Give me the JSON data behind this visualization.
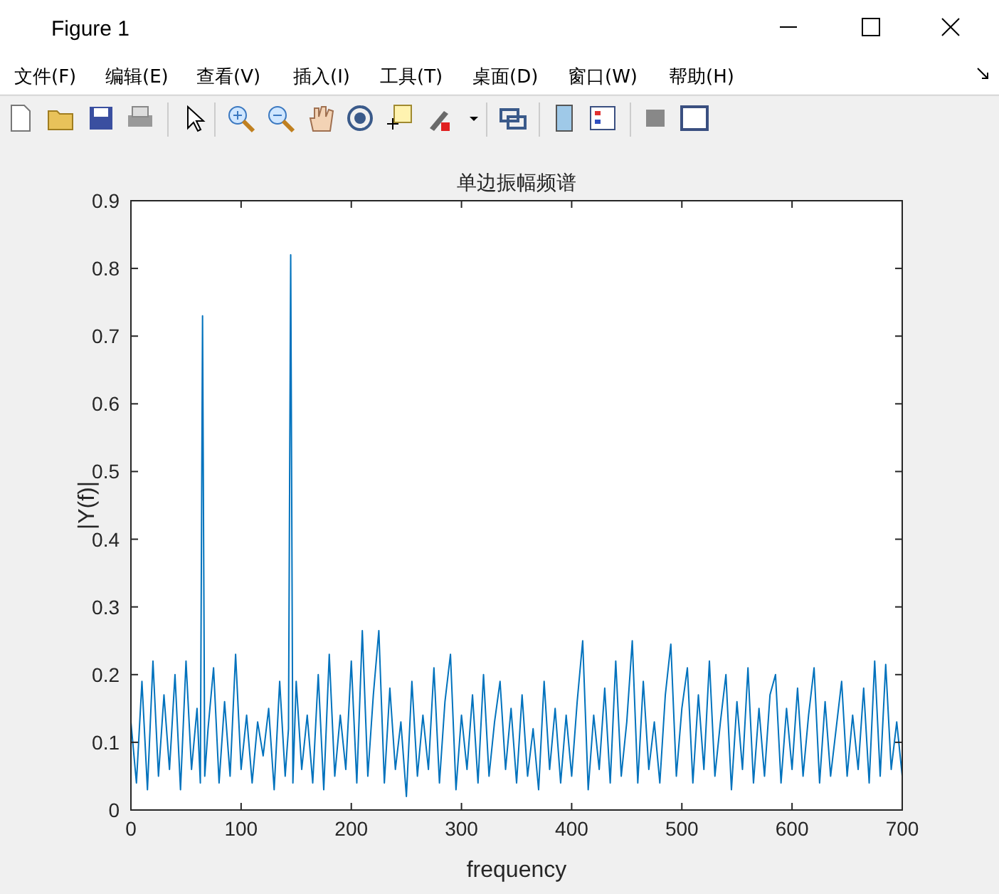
{
  "chart_data": {
    "type": "line",
    "title": "单边振幅频谱",
    "xlabel": "frequency",
    "ylabel": "|Y(f)|",
    "annotations": [
      "Figure 1",
      "文件(F)",
      "编辑(E)",
      "查看(V)",
      "插入(I)",
      "工具(T)",
      "桌面(D)",
      "窗口(W)",
      "帮助(H)"
    ],
    "x": [
      0,
      5,
      10,
      15,
      20,
      25,
      30,
      35,
      40,
      45,
      50,
      55,
      60,
      63,
      65,
      67,
      70,
      75,
      80,
      85,
      90,
      95,
      100,
      105,
      110,
      115,
      120,
      125,
      130,
      135,
      140,
      143,
      145,
      147,
      150,
      155,
      160,
      165,
      170,
      175,
      180,
      185,
      190,
      195,
      200,
      205,
      210,
      215,
      220,
      225,
      230,
      235,
      240,
      245,
      250,
      255,
      260,
      265,
      270,
      275,
      280,
      285,
      290,
      295,
      300,
      305,
      310,
      315,
      320,
      325,
      330,
      335,
      340,
      345,
      350,
      355,
      360,
      365,
      370,
      375,
      380,
      385,
      390,
      395,
      400,
      405,
      410,
      415,
      420,
      425,
      430,
      435,
      440,
      445,
      450,
      455,
      460,
      465,
      470,
      475,
      480,
      485,
      490,
      495,
      500,
      505,
      510,
      515,
      520,
      525,
      530,
      535,
      540,
      545,
      550,
      555,
      560,
      565,
      570,
      575,
      580,
      585,
      590,
      595,
      600,
      605,
      610,
      615,
      620,
      625,
      630,
      635,
      640,
      645,
      650,
      655,
      660,
      665,
      670,
      675,
      680,
      685,
      690,
      695,
      700
    ],
    "series": [
      {
        "color": "#0072bd",
        "values": [
          0.13,
          0.04,
          0.19,
          0.03,
          0.22,
          0.05,
          0.17,
          0.06,
          0.2,
          0.03,
          0.22,
          0.06,
          0.15,
          0.04,
          0.73,
          0.05,
          0.12,
          0.21,
          0.04,
          0.16,
          0.05,
          0.23,
          0.06,
          0.14,
          0.04,
          0.13,
          0.08,
          0.15,
          0.03,
          0.19,
          0.05,
          0.12,
          0.82,
          0.04,
          0.19,
          0.06,
          0.14,
          0.04,
          0.2,
          0.03,
          0.23,
          0.05,
          0.14,
          0.06,
          0.22,
          0.04,
          0.265,
          0.05,
          0.17,
          0.265,
          0.04,
          0.18,
          0.06,
          0.13,
          0.02,
          0.19,
          0.05,
          0.14,
          0.06,
          0.21,
          0.04,
          0.16,
          0.23,
          0.03,
          0.14,
          0.06,
          0.17,
          0.04,
          0.2,
          0.05,
          0.13,
          0.19,
          0.06,
          0.15,
          0.04,
          0.17,
          0.05,
          0.12,
          0.03,
          0.19,
          0.06,
          0.15,
          0.04,
          0.14,
          0.05,
          0.16,
          0.25,
          0.03,
          0.14,
          0.06,
          0.18,
          0.04,
          0.22,
          0.05,
          0.13,
          0.25,
          0.04,
          0.19,
          0.06,
          0.13,
          0.04,
          0.17,
          0.245,
          0.05,
          0.15,
          0.21,
          0.04,
          0.17,
          0.06,
          0.22,
          0.05,
          0.13,
          0.2,
          0.03,
          0.16,
          0.06,
          0.21,
          0.04,
          0.15,
          0.05,
          0.17,
          0.2,
          0.04,
          0.15,
          0.06,
          0.18,
          0.05,
          0.14,
          0.21,
          0.04,
          0.16,
          0.05,
          0.12,
          0.19,
          0.05,
          0.14,
          0.06,
          0.18,
          0.04,
          0.22,
          0.05,
          0.215,
          0.06,
          0.13,
          0.05
        ]
      }
    ],
    "xlim": [
      0,
      700
    ],
    "xticks": [
      0,
      100,
      200,
      300,
      400,
      500,
      600,
      700
    ],
    "ylim": [
      0,
      0.9
    ],
    "yticks": [
      0,
      0.1,
      0.2,
      0.3,
      0.4,
      0.5,
      0.6,
      0.7,
      0.8,
      0.9
    ],
    "grid": false,
    "line_style": "solid",
    "marker": "none"
  }
}
